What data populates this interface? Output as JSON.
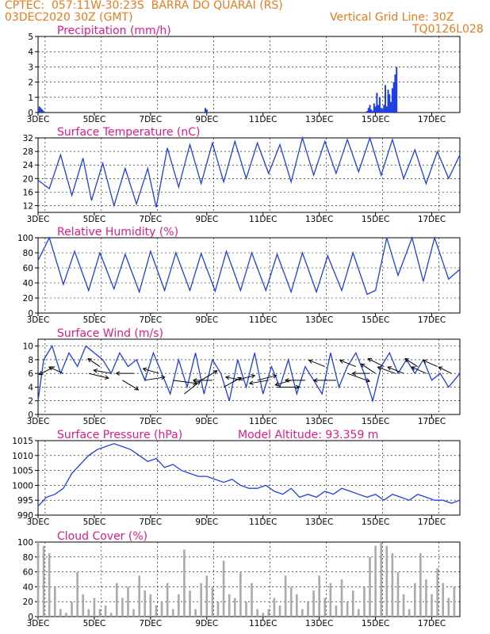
{
  "header": {
    "line1": "CPTEC:  057:11W-30:23S  BARRA DO QUARAI (RS)",
    "line2_left": "03DEC2020 30Z (GMT)",
    "line2_right": "Vertical Grid Line: 30Z",
    "line3_right": "TQ0126L028"
  },
  "colors": {
    "line": "#1f3fe0",
    "cloud": "#aaaaaa",
    "title": "#e01a8c",
    "header": "#e87a1e",
    "arrow": "#000000"
  },
  "x_labels": [
    "3DEC",
    "5DEC",
    "7DEC",
    "9DEC",
    "11DEC",
    "13DEC",
    "15DEC",
    "17DEC"
  ],
  "x_label_day": [
    3,
    5,
    7,
    9,
    11,
    13,
    15,
    17
  ],
  "chart_data": [
    {
      "type": "bar",
      "title": "Precipitation (mm/h)",
      "ylim": [
        0,
        5
      ],
      "yticks": [
        0,
        1,
        2,
        3,
        4,
        5
      ],
      "xlim": [
        3,
        18
      ],
      "x": [
        3.05,
        3.1,
        3.15,
        3.2,
        8.95,
        9.0,
        14.7,
        14.75,
        14.8,
        14.85,
        14.9,
        14.95,
        15.0,
        15.05,
        15.1,
        15.15,
        15.2,
        15.25,
        15.3,
        15.35,
        15.4,
        15.45,
        15.5,
        15.55,
        15.6,
        15.65,
        15.7,
        15.75
      ],
      "values": [
        0.4,
        0.3,
        0.2,
        0.1,
        0.3,
        0.2,
        0.1,
        0.3,
        0.5,
        0.2,
        0.1,
        0.6,
        0.4,
        1.3,
        0.5,
        1.0,
        0.3,
        0.2,
        0.5,
        1.8,
        0.4,
        1.5,
        1.2,
        0.7,
        1.6,
        2.0,
        2.5,
        3.0
      ]
    },
    {
      "type": "line",
      "title": "Surface Temperature (nC)",
      "ylim": [
        10,
        32
      ],
      "yticks": [
        12,
        16,
        20,
        24,
        28,
        32
      ],
      "xlim": [
        3,
        18
      ],
      "x": [
        3.0,
        3.4,
        3.8,
        4.2,
        4.6,
        4.9,
        5.3,
        5.7,
        6.1,
        6.5,
        6.9,
        7.2,
        7.6,
        8.0,
        8.4,
        8.8,
        9.2,
        9.6,
        10.0,
        10.4,
        10.8,
        11.2,
        11.6,
        12.0,
        12.4,
        12.8,
        13.2,
        13.6,
        14.0,
        14.4,
        14.8,
        15.2,
        15.6,
        16.0,
        16.4,
        16.8,
        17.2,
        17.6,
        18.0
      ],
      "values": [
        19.5,
        17.0,
        27.0,
        15.0,
        26.0,
        13.5,
        24.5,
        12.0,
        23.0,
        12.5,
        23.0,
        11.5,
        29.0,
        17.5,
        30.0,
        18.5,
        30.5,
        19.0,
        31.0,
        20.0,
        30.5,
        21.5,
        30.0,
        19.0,
        32.0,
        21.0,
        31.0,
        21.5,
        31.5,
        22.0,
        32.0,
        21.0,
        31.5,
        20.0,
        28.5,
        18.5,
        28.0,
        20.0,
        27.0
      ]
    },
    {
      "type": "line",
      "title": "Relative Humidity (%)",
      "ylim": [
        0,
        100
      ],
      "yticks": [
        0,
        20,
        40,
        60,
        80,
        100
      ],
      "xlim": [
        3,
        18
      ],
      "x": [
        3.0,
        3.4,
        3.9,
        4.3,
        4.8,
        5.2,
        5.7,
        6.1,
        6.6,
        7.0,
        7.5,
        7.9,
        8.4,
        8.8,
        9.3,
        9.7,
        10.2,
        10.6,
        11.1,
        11.5,
        12.0,
        12.4,
        12.9,
        13.3,
        13.8,
        14.2,
        14.7,
        15.0,
        15.4,
        15.8,
        16.3,
        16.7,
        17.1,
        17.6,
        18.0
      ],
      "values": [
        70,
        100,
        38,
        82,
        30,
        80,
        32,
        78,
        28,
        82,
        30,
        80,
        30,
        79,
        29,
        82,
        30,
        80,
        30,
        78,
        28,
        80,
        28,
        76,
        30,
        80,
        25,
        30,
        100,
        50,
        100,
        42,
        100,
        45,
        58
      ]
    },
    {
      "type": "line",
      "title": "Surface Wind (m/s)",
      "ylim": [
        0,
        11
      ],
      "yticks": [
        0,
        2,
        4,
        6,
        8,
        10
      ],
      "xlim": [
        3,
        18
      ],
      "x": [
        3.0,
        3.2,
        3.5,
        3.8,
        4.1,
        4.4,
        4.7,
        5.0,
        5.3,
        5.6,
        5.9,
        6.2,
        6.5,
        6.8,
        7.1,
        7.4,
        7.7,
        8.0,
        8.3,
        8.6,
        8.9,
        9.2,
        9.5,
        9.8,
        10.1,
        10.4,
        10.7,
        11.0,
        11.3,
        11.6,
        11.9,
        12.2,
        12.5,
        12.8,
        13.1,
        13.4,
        13.7,
        14.0,
        14.3,
        14.6,
        14.9,
        15.2,
        15.5,
        15.8,
        16.1,
        16.4,
        16.7,
        17.0,
        17.3,
        17.6,
        18.0
      ],
      "values": [
        2,
        8,
        10,
        6,
        9,
        7,
        10,
        9,
        8,
        6,
        9,
        7,
        8,
        5,
        9,
        6,
        3,
        8,
        4,
        9,
        3,
        8,
        6,
        2,
        8,
        4,
        9,
        3,
        7,
        4,
        8,
        3,
        7,
        5,
        3,
        9,
        4,
        7,
        9,
        6,
        2,
        7,
        9,
        6,
        8,
        6,
        8,
        5,
        6,
        4,
        6
      ]
    },
    {
      "type": "line",
      "title": "Surface Pressure (hPa)",
      "annotation": "Model Altitude: 93.359 m",
      "ylim": [
        990,
        1015
      ],
      "yticks": [
        990,
        995,
        1000,
        1005,
        1010,
        1015
      ],
      "xlim": [
        3,
        18
      ],
      "x": [
        3.0,
        3.3,
        3.6,
        3.9,
        4.2,
        4.5,
        4.8,
        5.1,
        5.4,
        5.7,
        6.0,
        6.3,
        6.6,
        6.9,
        7.2,
        7.5,
        7.8,
        8.1,
        8.4,
        8.7,
        9.0,
        9.3,
        9.6,
        9.9,
        10.2,
        10.5,
        10.8,
        11.1,
        11.4,
        11.7,
        12.0,
        12.3,
        12.6,
        12.9,
        13.2,
        13.5,
        13.8,
        14.1,
        14.4,
        14.7,
        15.0,
        15.3,
        15.6,
        15.9,
        16.2,
        16.5,
        16.8,
        17.1,
        17.4,
        17.7,
        18.0
      ],
      "values": [
        993,
        996,
        997,
        999,
        1004,
        1007,
        1010,
        1012,
        1013,
        1014,
        1013,
        1012,
        1010,
        1008,
        1009,
        1006,
        1007,
        1005,
        1004,
        1003,
        1003,
        1002,
        1001,
        1002,
        1000,
        999,
        999,
        1000,
        998,
        997,
        999,
        996,
        997,
        996,
        998,
        997,
        999,
        998,
        997,
        996,
        997,
        995,
        997,
        996,
        995,
        997,
        996,
        995,
        995,
        994,
        995
      ]
    },
    {
      "type": "bar",
      "title": "Cloud Cover (%)",
      "ylim": [
        0,
        100
      ],
      "yticks": [
        0,
        20,
        40,
        60,
        80,
        100
      ],
      "xlim": [
        3,
        18
      ],
      "x": [
        3.0,
        3.2,
        3.4,
        3.6,
        3.8,
        4.0,
        4.2,
        4.4,
        4.6,
        4.8,
        5.0,
        5.2,
        5.4,
        5.6,
        5.8,
        6.0,
        6.2,
        6.4,
        6.6,
        6.8,
        7.0,
        7.2,
        7.4,
        7.6,
        7.8,
        8.0,
        8.2,
        8.4,
        8.6,
        8.8,
        9.0,
        9.2,
        9.4,
        9.6,
        9.8,
        10.0,
        10.2,
        10.4,
        10.6,
        10.8,
        11.0,
        11.2,
        11.4,
        11.6,
        11.8,
        12.0,
        12.2,
        12.4,
        12.6,
        12.8,
        13.0,
        13.2,
        13.4,
        13.6,
        13.8,
        14.0,
        14.2,
        14.4,
        14.6,
        14.8,
        15.0,
        15.2,
        15.4,
        15.6,
        15.8,
        16.0,
        16.2,
        16.4,
        16.6,
        16.8,
        17.0,
        17.2,
        17.4,
        17.6,
        17.8
      ],
      "values": [
        100,
        95,
        85,
        40,
        10,
        5,
        20,
        60,
        30,
        10,
        25,
        10,
        15,
        5,
        45,
        25,
        40,
        10,
        55,
        35,
        30,
        15,
        20,
        45,
        10,
        30,
        90,
        35,
        10,
        45,
        55,
        40,
        20,
        75,
        30,
        25,
        60,
        20,
        45,
        10,
        5,
        10,
        25,
        15,
        55,
        40,
        30,
        10,
        20,
        35,
        55,
        25,
        45,
        15,
        50,
        20,
        35,
        10,
        40,
        80,
        95,
        100,
        95,
        85,
        60,
        30,
        10,
        45,
        85,
        50,
        30,
        65,
        45,
        25,
        40
      ]
    }
  ]
}
